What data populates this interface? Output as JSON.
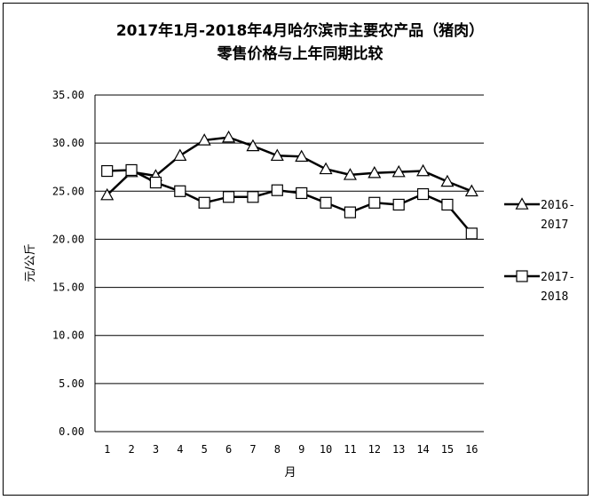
{
  "chart_data": {
    "type": "line",
    "title_lines": [
      "2017年1月-2018年4月哈尔滨市主要农产品（猪肉）",
      "零售价格与上年同期比较"
    ],
    "xlabel": "月",
    "ylabel": "元/公斤",
    "ylim": [
      0,
      35
    ],
    "ytick_labels": [
      "0.00",
      "5.00",
      "10.00",
      "15.00",
      "20.00",
      "25.00",
      "30.00",
      "35.00"
    ],
    "categories": [
      "1",
      "2",
      "3",
      "4",
      "5",
      "6",
      "7",
      "8",
      "9",
      "10",
      "11",
      "12",
      "13",
      "14",
      "15",
      "16"
    ],
    "grid": true,
    "legend_position": "right",
    "series": [
      {
        "name": "2016-2017",
        "legend_lines": [
          "2016-",
          "2017"
        ],
        "marker": "triangle",
        "values": [
          24.6,
          27.0,
          26.6,
          28.7,
          30.3,
          30.6,
          29.7,
          28.7,
          28.6,
          27.3,
          26.7,
          26.9,
          27.0,
          27.1,
          26.0,
          25.0
        ]
      },
      {
        "name": "2017-2018",
        "legend_lines": [
          "2017-",
          "2018"
        ],
        "marker": "square",
        "values": [
          27.1,
          27.2,
          25.9,
          25.0,
          23.8,
          24.4,
          24.4,
          25.1,
          24.8,
          23.8,
          22.8,
          23.8,
          23.6,
          24.7,
          23.6,
          20.6
        ]
      }
    ]
  }
}
